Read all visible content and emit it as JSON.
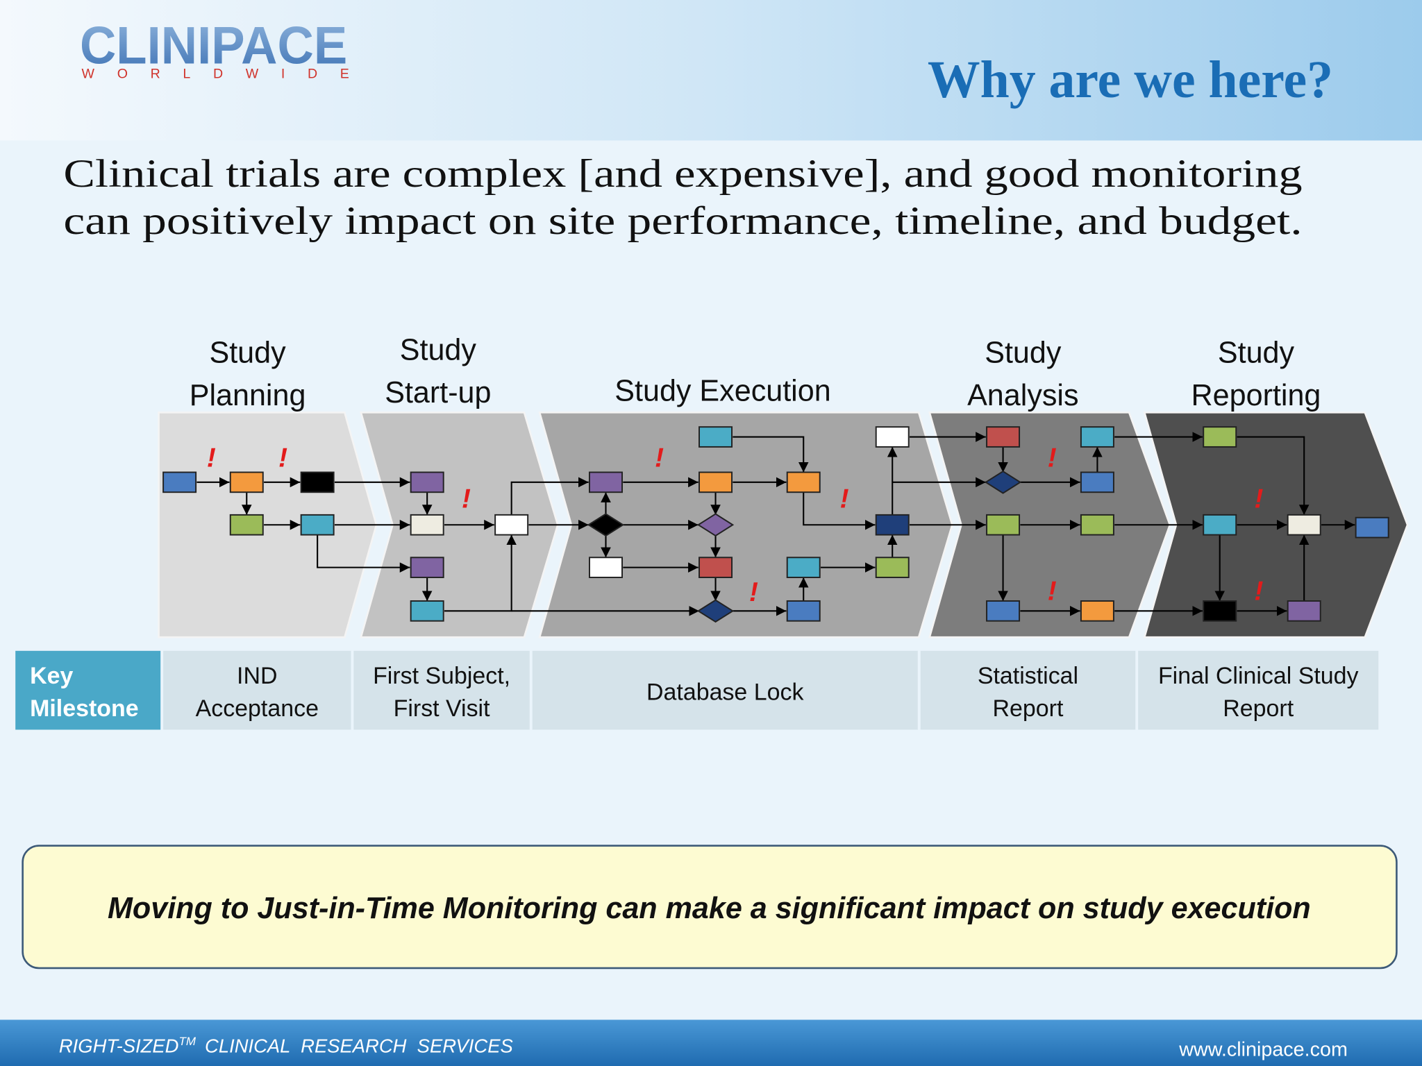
{
  "logo": {
    "name": "CLINIPACE",
    "tagline": "WORLDWIDE"
  },
  "header": {
    "title": "Why are we here?"
  },
  "intro": {
    "lines": [
      "Clinical trials are complex [and expensive], and good monitoring",
      "can positively impact on site performance, timeline, and budget."
    ]
  },
  "diagram": {
    "phases": [
      {
        "label": [
          "Study",
          "Planning"
        ]
      },
      {
        "label": [
          "Study",
          "Start-up"
        ]
      },
      {
        "label": [
          "Study Execution"
        ]
      },
      {
        "label": [
          "Study",
          "Analysis"
        ]
      },
      {
        "label": [
          "Study",
          "Reporting"
        ]
      }
    ],
    "alert_mark": "!"
  },
  "milestones": {
    "header": [
      "Key",
      "Milestone"
    ],
    "cells": [
      [
        "IND",
        "Acceptance"
      ],
      [
        "First Subject,",
        "First Visit"
      ],
      [
        "Database Lock"
      ],
      [
        "Statistical",
        "Report"
      ],
      [
        "Final Clinical Study",
        "Report"
      ]
    ]
  },
  "callout": {
    "text": "Moving to Just-in-Time Monitoring can make a significant impact on study execution"
  },
  "footer": {
    "tagline": "RIGHT-SIZED",
    "trademark": "TM",
    "services": "CLINICAL  RESEARCH  SERVICES",
    "url": "www.clinipace.com"
  }
}
